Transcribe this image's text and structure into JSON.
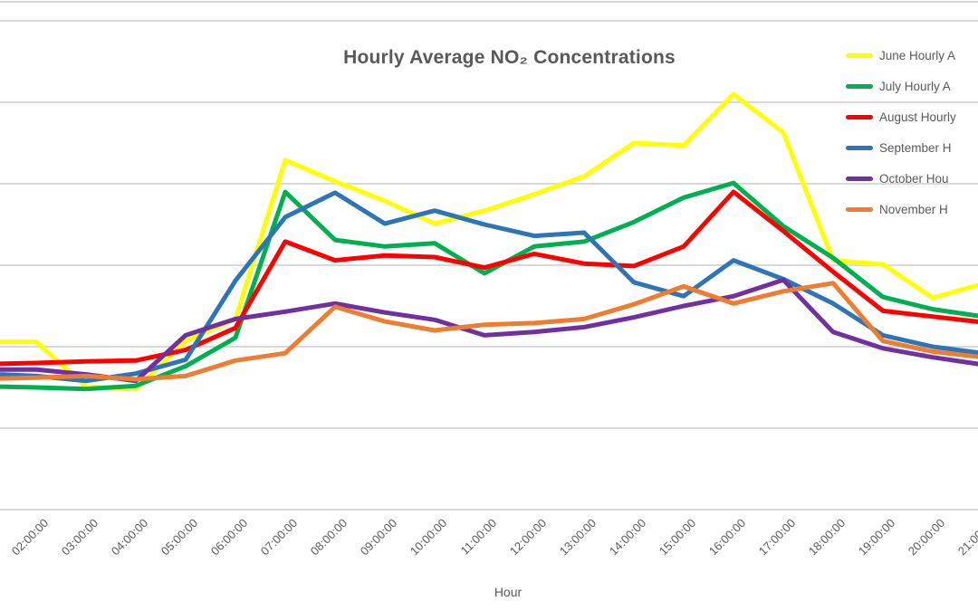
{
  "title": "Hourly Average NO₂ Concentrations",
  "x_axis": {
    "title": "Hour",
    "labels": [
      "02:00:00",
      "03:00:00",
      "04:00:00",
      "05:00:00",
      "06:00:00",
      "07:00:00",
      "08:00:00",
      "09:00:00",
      "10:00:00",
      "11:00:00",
      "12:00:00",
      "13:00:00",
      "14:00:00",
      "15:00:00",
      "16:00:00",
      "17:00:00",
      "18:00:00",
      "19:00:00",
      "20:00:00",
      "21:00:00"
    ]
  },
  "legend": [
    {
      "label": "June Hourly A",
      "color": "#FFFF00"
    },
    {
      "label": "July Hourly A",
      "color": "#00B050"
    },
    {
      "label": "August Hourly",
      "color": "#FF0000"
    },
    {
      "label": "September H",
      "color": "#2E75B6"
    },
    {
      "label": "October Hou",
      "color": "#7030A0"
    },
    {
      "label": "November H",
      "color": "#ED7D31"
    }
  ],
  "palette": {
    "text_color": "#595959",
    "gridline_color": "#D9D9D9",
    "background": "#FFFFFF"
  },
  "chart_data": {
    "type": "line",
    "title": "Hourly Average NO₂ Concentrations",
    "xlabel": "Hour",
    "ylabel": "",
    "x": [
      "02:00:00",
      "03:00:00",
      "04:00:00",
      "05:00:00",
      "06:00:00",
      "07:00:00",
      "08:00:00",
      "09:00:00",
      "10:00:00",
      "11:00:00",
      "12:00:00",
      "13:00:00",
      "14:00:00",
      "15:00:00",
      "16:00:00",
      "17:00:00",
      "18:00:00",
      "19:00:00",
      "20:00:00",
      "21:00:00"
    ],
    "ylim": [
      0,
      60
    ],
    "gridline_step": 10,
    "grid": true,
    "legend_position": "right",
    "y_axis_labels_visible": false,
    "x_labels_rotation_deg": -45,
    "series": [
      {
        "name": "June Hourly A",
        "color": "#FFFF00",
        "edge_value": 20.6,
        "values": [
          20.6,
          15.1,
          14.8,
          20.7,
          23.4,
          42.9,
          40.3,
          37.9,
          35.1,
          36.7,
          38.7,
          40.9,
          45.0,
          44.7,
          51.0,
          46.3,
          30.6,
          30.1,
          26.0,
          27.7
        ]
      },
      {
        "name": "July Hourly A",
        "color": "#00B050",
        "edge_value": 15.1,
        "values": [
          15.0,
          14.8,
          15.2,
          17.6,
          21.1,
          39.0,
          33.1,
          32.3,
          32.7,
          29.0,
          32.3,
          32.9,
          35.3,
          38.3,
          40.1,
          34.8,
          30.9,
          26.1,
          24.6,
          23.7
        ]
      },
      {
        "name": "August Hourly",
        "color": "#FF0000",
        "edge_value": 17.9,
        "values": [
          18.0,
          18.2,
          18.3,
          19.6,
          22.3,
          32.9,
          30.6,
          31.2,
          31.0,
          29.7,
          31.4,
          30.2,
          29.9,
          32.3,
          39.0,
          34.2,
          29.2,
          24.4,
          23.7,
          23.0
        ]
      },
      {
        "name": "September H",
        "color": "#2E75B6",
        "edge_value": 16.6,
        "values": [
          16.4,
          15.8,
          16.7,
          18.4,
          28.1,
          35.9,
          38.9,
          35.1,
          36.7,
          35.0,
          33.6,
          34.0,
          27.9,
          26.2,
          30.6,
          28.3,
          25.3,
          21.4,
          20.0,
          19.2
        ]
      },
      {
        "name": "October Hou",
        "color": "#7030A0",
        "edge_value": 17.2,
        "values": [
          17.2,
          16.6,
          15.8,
          21.4,
          23.4,
          24.3,
          25.3,
          24.2,
          23.3,
          21.4,
          21.8,
          22.4,
          23.6,
          25.0,
          26.2,
          28.2,
          21.8,
          19.8,
          18.7,
          17.8
        ]
      },
      {
        "name": "November H",
        "color": "#ED7D31",
        "edge_value": 16.1,
        "values": [
          16.2,
          16.4,
          16.0,
          16.4,
          18.3,
          19.2,
          24.9,
          23.1,
          22.0,
          22.7,
          22.9,
          23.4,
          25.2,
          27.4,
          25.3,
          26.8,
          27.8,
          20.7,
          19.4,
          18.7
        ]
      }
    ]
  }
}
